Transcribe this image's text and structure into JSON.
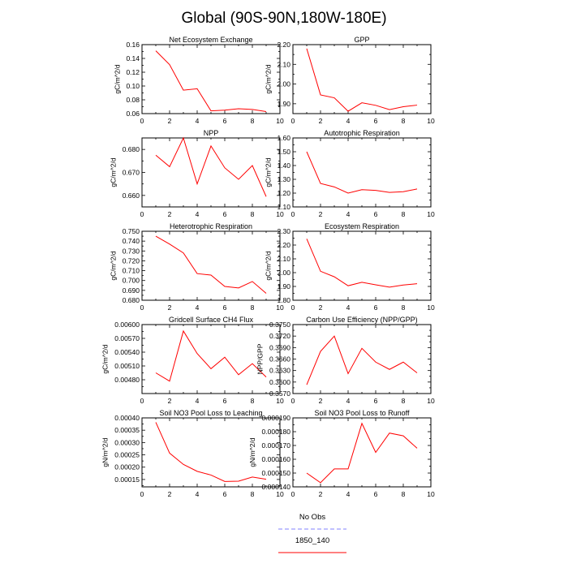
{
  "title": "Global (90S-90N,180W-180E)",
  "colors": {
    "model": "#ff0000",
    "obs": "#8080ff",
    "axis": "#000000"
  },
  "legend": [
    {
      "label": "No Obs",
      "color": "#8080ff",
      "dash": true
    },
    {
      "label": "1850_140",
      "color": "#ff0000",
      "dash": false
    }
  ],
  "chart_data": [
    {
      "type": "line",
      "title": "Net Ecosystem Exchange",
      "ylabel": "gC/m^2/d",
      "xlim": [
        0,
        10
      ],
      "xticks": [
        0,
        2,
        4,
        6,
        8,
        10
      ],
      "ylim": [
        0.06,
        0.16
      ],
      "yticks": [
        "0.06",
        "0.08",
        "0.10",
        "0.12",
        "0.14",
        "0.16"
      ],
      "x": [
        1,
        2,
        3,
        4,
        5,
        6,
        7,
        8,
        9
      ],
      "series": [
        {
          "name": "1850_140",
          "values": [
            0.151,
            0.131,
            0.094,
            0.096,
            0.064,
            0.065,
            0.067,
            0.066,
            0.063
          ]
        }
      ]
    },
    {
      "type": "line",
      "title": "GPP",
      "ylabel": "gC/m^2/d",
      "xlim": [
        0,
        10
      ],
      "xticks": [
        0,
        2,
        4,
        6,
        8,
        10
      ],
      "ylim": [
        1.85,
        2.2
      ],
      "yticks": [
        "1.90",
        "2.00",
        "2.10",
        "2.20"
      ],
      "x": [
        1,
        2,
        3,
        4,
        5,
        6,
        7,
        8,
        9
      ],
      "series": [
        {
          "name": "1850_140",
          "values": [
            2.18,
            1.945,
            1.93,
            1.862,
            1.905,
            1.892,
            1.87,
            1.885,
            1.893
          ]
        }
      ]
    },
    {
      "type": "line",
      "title": "NPP",
      "ylabel": "gC/m^2/d",
      "xlim": [
        0,
        10
      ],
      "xticks": [
        0,
        2,
        4,
        6,
        8,
        10
      ],
      "ylim": [
        0.655,
        0.685
      ],
      "yticks": [
        "0.660",
        "0.670",
        "0.680"
      ],
      "x": [
        1,
        2,
        3,
        4,
        5,
        6,
        7,
        8,
        9
      ],
      "series": [
        {
          "name": "1850_140",
          "values": [
            0.6775,
            0.6725,
            0.685,
            0.665,
            0.6815,
            0.672,
            0.667,
            0.673,
            0.6595
          ]
        }
      ]
    },
    {
      "type": "line",
      "title": "Autotrophic Respiration",
      "ylabel": "gC/m^2/d",
      "xlim": [
        0,
        10
      ],
      "xticks": [
        0,
        2,
        4,
        6,
        8,
        10
      ],
      "ylim": [
        1.1,
        1.6
      ],
      "yticks": [
        "1.10",
        "1.20",
        "1.30",
        "1.40",
        "1.50",
        "1.60"
      ],
      "x": [
        1,
        2,
        3,
        4,
        5,
        6,
        7,
        8,
        9
      ],
      "series": [
        {
          "name": "1850_140",
          "values": [
            1.5,
            1.27,
            1.245,
            1.2,
            1.225,
            1.22,
            1.205,
            1.21,
            1.23
          ]
        }
      ]
    },
    {
      "type": "line",
      "title": "Heterotrophic Respiration",
      "ylabel": "gC/m^2/d",
      "xlim": [
        0,
        10
      ],
      "xticks": [
        0,
        2,
        4,
        6,
        8,
        10
      ],
      "ylim": [
        0.68,
        0.75
      ],
      "yticks": [
        "0.680",
        "0.690",
        "0.700",
        "0.710",
        "0.720",
        "0.730",
        "0.740",
        "0.750"
      ],
      "x": [
        1,
        2,
        3,
        4,
        5,
        6,
        7,
        8,
        9
      ],
      "series": [
        {
          "name": "1850_140",
          "values": [
            0.745,
            0.737,
            0.728,
            0.707,
            0.7055,
            0.694,
            0.6925,
            0.699,
            0.687
          ]
        }
      ]
    },
    {
      "type": "line",
      "title": "Ecosystem Respiration",
      "ylabel": "gC/m^2/d",
      "xlim": [
        0,
        10
      ],
      "xticks": [
        0,
        2,
        4,
        6,
        8,
        10
      ],
      "ylim": [
        1.8,
        2.3
      ],
      "yticks": [
        "1.80",
        "1.90",
        "2.00",
        "2.10",
        "2.20",
        "2.30"
      ],
      "x": [
        1,
        2,
        3,
        4,
        5,
        6,
        7,
        8,
        9
      ],
      "series": [
        {
          "name": "1850_140",
          "values": [
            2.245,
            2.01,
            1.97,
            1.905,
            1.93,
            1.912,
            1.895,
            1.91,
            1.92
          ]
        }
      ]
    },
    {
      "type": "line",
      "title": "Gridcell Surface CH4 Flux",
      "ylabel": "gC/m^2/d",
      "xlim": [
        0,
        10
      ],
      "xticks": [
        0,
        2,
        4,
        6,
        8,
        10
      ],
      "ylim": [
        0.0045,
        0.006
      ],
      "yticks": [
        "0.00480",
        "0.00510",
        "0.00540",
        "0.00570",
        "0.00600"
      ],
      "x": [
        1,
        2,
        3,
        4,
        5,
        6,
        7,
        8,
        9
      ],
      "series": [
        {
          "name": "1850_140",
          "values": [
            0.00495,
            0.00477,
            0.00586,
            0.00537,
            0.00504,
            0.00529,
            0.00491,
            0.00515,
            0.00486
          ]
        }
      ]
    },
    {
      "type": "line",
      "title": "Carbon Use Efficiency (NPP/GPP)",
      "ylabel": "NPP/GPP",
      "xlim": [
        0,
        10
      ],
      "xticks": [
        0,
        2,
        4,
        6,
        8,
        10
      ],
      "ylim": [
        0.357,
        0.375
      ],
      "yticks": [
        "0.3570",
        "0.3600",
        "0.3630",
        "0.3660",
        "0.3690",
        "0.3720",
        "0.3750"
      ],
      "x": [
        1,
        2,
        3,
        4,
        5,
        6,
        7,
        8,
        9
      ],
      "series": [
        {
          "name": "1850_140",
          "values": [
            0.3593,
            0.368,
            0.372,
            0.3622,
            0.3688,
            0.3652,
            0.3633,
            0.3652,
            0.3624
          ]
        }
      ]
    },
    {
      "type": "line",
      "title": "Soil NO3 Pool Loss to Leaching",
      "ylabel": "gN/m^2/d",
      "xlim": [
        0,
        10
      ],
      "xticks": [
        0,
        2,
        4,
        6,
        8,
        10
      ],
      "ylim": [
        0.00012,
        0.0004
      ],
      "yticks": [
        "0.00015",
        "0.00020",
        "0.00025",
        "0.00030",
        "0.00035",
        "0.00040"
      ],
      "x": [
        1,
        2,
        3,
        4,
        5,
        6,
        7,
        8,
        9
      ],
      "series": [
        {
          "name": "1850_140",
          "values": [
            0.000382,
            0.000257,
            0.000211,
            0.000183,
            0.000168,
            0.000142,
            0.000143,
            0.00016,
            0.000151
          ]
        }
      ]
    },
    {
      "type": "line",
      "title": "Soil NO3 Pool Loss to Runoff",
      "ylabel": "gN/m^2/d",
      "xlim": [
        0,
        10
      ],
      "xticks": [
        0,
        2,
        4,
        6,
        8,
        10
      ],
      "ylim": [
        0.00014,
        0.00019
      ],
      "yticks": [
        "0.000140",
        "0.000150",
        "0.000160",
        "0.000170",
        "0.000180",
        "0.000190"
      ],
      "x": [
        1,
        2,
        3,
        4,
        5,
        6,
        7,
        8,
        9
      ],
      "series": [
        {
          "name": "1850_140",
          "values": [
            0.00015,
            0.000143,
            0.000153,
            0.000153,
            0.000186,
            0.000165,
            0.000179,
            0.000177,
            0.000168
          ]
        }
      ]
    }
  ]
}
